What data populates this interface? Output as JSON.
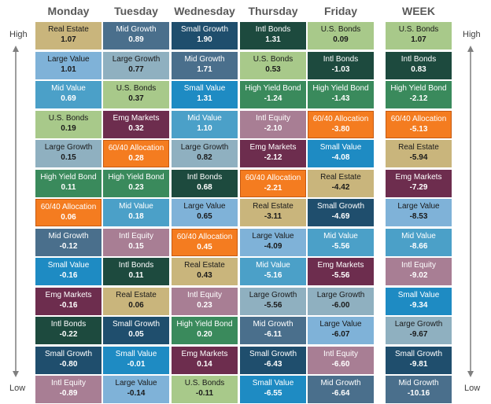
{
  "labels": {
    "high": "High",
    "low": "Low"
  },
  "colors": {
    "Real Estate": "#c9b57c",
    "Mid Growth": "#4a6f8c",
    "Small Growth": "#1f4e6d",
    "Intl Bonds": "#1d4a3e",
    "U.S. Bonds": "#a8c98a",
    "Large Value": "#7fb2d8",
    "Large Growth": "#8fb0c0",
    "Mid Value": "#4ba0c8",
    "Small Value": "#1e8bc3",
    "High Yield Bond": "#3a8a5c",
    "Emg Markets": "#6d2d4e",
    "Intl Equity": "#a87e94",
    "60/40 Allocation": "#f47c20"
  },
  "chart_data": {
    "type": "table",
    "columns": [
      {
        "name": "Monday",
        "cells": [
          {
            "asset": "Real Estate",
            "value": "1.07"
          },
          {
            "asset": "Large Value",
            "value": "1.01"
          },
          {
            "asset": "Mid Value",
            "value": "0.69"
          },
          {
            "asset": "U.S. Bonds",
            "value": "0.19"
          },
          {
            "asset": "Large Growth",
            "value": "0.15"
          },
          {
            "asset": "High Yield Bond",
            "value": "0.11"
          },
          {
            "asset": "60/40 Allocation",
            "value": "0.06"
          },
          {
            "asset": "Mid Growth",
            "value": "-0.12"
          },
          {
            "asset": "Small Value",
            "value": "-0.16"
          },
          {
            "asset": "Emg Markets",
            "value": "-0.16"
          },
          {
            "asset": "Intl Bonds",
            "value": "-0.22"
          },
          {
            "asset": "Small Growth",
            "value": "-0.80"
          },
          {
            "asset": "Intl Equity",
            "value": "-0.89"
          }
        ]
      },
      {
        "name": "Tuesday",
        "cells": [
          {
            "asset": "Mid Growth",
            "value": "0.89"
          },
          {
            "asset": "Large Growth",
            "value": "0.77"
          },
          {
            "asset": "U.S. Bonds",
            "value": "0.37"
          },
          {
            "asset": "Emg Markets",
            "value": "0.32"
          },
          {
            "asset": "60/40 Allocation",
            "value": "0.28"
          },
          {
            "asset": "High Yield Bond",
            "value": "0.23"
          },
          {
            "asset": "Mid Value",
            "value": "0.18"
          },
          {
            "asset": "Intl Equity",
            "value": "0.15"
          },
          {
            "asset": "Intl Bonds",
            "value": "0.11"
          },
          {
            "asset": "Real Estate",
            "value": "0.06"
          },
          {
            "asset": "Small Growth",
            "value": "0.05"
          },
          {
            "asset": "Small Value",
            "value": "-0.01"
          },
          {
            "asset": "Large Value",
            "value": "-0.14"
          }
        ]
      },
      {
        "name": "Wednesday",
        "cells": [
          {
            "asset": "Small Growth",
            "value": "1.90"
          },
          {
            "asset": "Mid Growth",
            "value": "1.71"
          },
          {
            "asset": "Small Value",
            "value": "1.31"
          },
          {
            "asset": "Mid Value",
            "value": "1.10"
          },
          {
            "asset": "Large Growth",
            "value": "0.82"
          },
          {
            "asset": "Intl Bonds",
            "value": "0.68"
          },
          {
            "asset": "Large Value",
            "value": "0.65"
          },
          {
            "asset": "60/40 Allocation",
            "value": "0.45"
          },
          {
            "asset": "Real Estate",
            "value": "0.43"
          },
          {
            "asset": "Intl Equity",
            "value": "0.23"
          },
          {
            "asset": "High Yield Bond",
            "value": "0.20"
          },
          {
            "asset": "Emg Markets",
            "value": "0.14"
          },
          {
            "asset": "U.S. Bonds",
            "value": "-0.11"
          }
        ]
      },
      {
        "name": "Thursday",
        "cells": [
          {
            "asset": "Intl Bonds",
            "value": "1.31"
          },
          {
            "asset": "U.S. Bonds",
            "value": "0.53"
          },
          {
            "asset": "High Yield Bond",
            "value": "-1.24"
          },
          {
            "asset": "Intl Equity",
            "value": "-2.10"
          },
          {
            "asset": "Emg Markets",
            "value": "-2.12"
          },
          {
            "asset": "60/40 Allocation",
            "value": "-2.21"
          },
          {
            "asset": "Real Estate",
            "value": "-3.11"
          },
          {
            "asset": "Large Value",
            "value": "-4.09"
          },
          {
            "asset": "Mid Value",
            "value": "-5.16"
          },
          {
            "asset": "Large Growth",
            "value": "-5.56"
          },
          {
            "asset": "Mid Growth",
            "value": "-6.11"
          },
          {
            "asset": "Small Growth",
            "value": "-6.43"
          },
          {
            "asset": "Small Value",
            "value": "-6.55"
          }
        ]
      },
      {
        "name": "Friday",
        "cells": [
          {
            "asset": "U.S. Bonds",
            "value": "0.09"
          },
          {
            "asset": "Intl Bonds",
            "value": "-1.03"
          },
          {
            "asset": "High Yield Bond",
            "value": "-1.43"
          },
          {
            "asset": "60/40 Allocation",
            "value": "-3.80"
          },
          {
            "asset": "Small Value",
            "value": "-4.08"
          },
          {
            "asset": "Real Estate",
            "value": "-4.42"
          },
          {
            "asset": "Small Growth",
            "value": "-4.69"
          },
          {
            "asset": "Mid Value",
            "value": "-5.56"
          },
          {
            "asset": "Emg Markets",
            "value": "-5.56"
          },
          {
            "asset": "Large Growth",
            "value": "-6.00"
          },
          {
            "asset": "Large Value",
            "value": "-6.07"
          },
          {
            "asset": "Intl Equity",
            "value": "-6.60"
          },
          {
            "asset": "Mid Growth",
            "value": "-6.64"
          }
        ]
      },
      {
        "name": "WEEK",
        "cells": [
          {
            "asset": "U.S. Bonds",
            "value": "1.07"
          },
          {
            "asset": "Intl Bonds",
            "value": "0.83"
          },
          {
            "asset": "High Yield Bond",
            "value": "-2.12"
          },
          {
            "asset": "60/40 Allocation",
            "value": "-5.13"
          },
          {
            "asset": "Real Estate",
            "value": "-5.94"
          },
          {
            "asset": "Emg Markets",
            "value": "-7.29"
          },
          {
            "asset": "Large Value",
            "value": "-8.53"
          },
          {
            "asset": "Mid Value",
            "value": "-8.66"
          },
          {
            "asset": "Intl Equity",
            "value": "-9.02"
          },
          {
            "asset": "Small Value",
            "value": "-9.34"
          },
          {
            "asset": "Large Growth",
            "value": "-9.67"
          },
          {
            "asset": "Small Growth",
            "value": "-9.81"
          },
          {
            "asset": "Mid Growth",
            "value": "-10.16"
          }
        ]
      }
    ]
  }
}
